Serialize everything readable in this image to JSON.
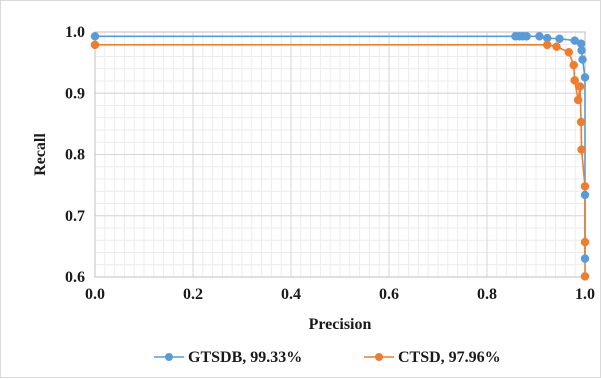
{
  "chart_data": {
    "type": "line",
    "title": "",
    "xlabel": "Precision",
    "ylabel": "Recall",
    "xlim": [
      0,
      1.0
    ],
    "ylim": [
      0.6,
      1.0
    ],
    "x_ticks": [
      "0.0",
      "0.2",
      "0.4",
      "0.6",
      "0.8",
      "1.0"
    ],
    "y_ticks": [
      "0.6",
      "0.7",
      "0.8",
      "0.9",
      "1.0"
    ],
    "grid": true,
    "legend_position": "bottom",
    "series": [
      {
        "name": "GTSDB, 99.33%",
        "color": "#5b9bd5",
        "points": [
          {
            "x": 0.0,
            "y": 0.993
          },
          {
            "x": 0.858,
            "y": 0.993
          },
          {
            "x": 0.866,
            "y": 0.993
          },
          {
            "x": 0.873,
            "y": 0.993
          },
          {
            "x": 0.881,
            "y": 0.993
          },
          {
            "x": 0.907,
            "y": 0.993
          },
          {
            "x": 0.923,
            "y": 0.99
          },
          {
            "x": 0.948,
            "y": 0.989
          },
          {
            "x": 0.979,
            "y": 0.986
          },
          {
            "x": 0.992,
            "y": 0.981
          },
          {
            "x": 0.993,
            "y": 0.97
          },
          {
            "x": 0.995,
            "y": 0.955
          },
          {
            "x": 1.0,
            "y": 0.926
          },
          {
            "x": 1.0,
            "y": 0.734
          },
          {
            "x": 1.0,
            "y": 0.63
          }
        ]
      },
      {
        "name": "CTSD, 97.96%",
        "color": "#ed7d31",
        "points": [
          {
            "x": 0.0,
            "y": 0.979
          },
          {
            "x": 0.923,
            "y": 0.979
          },
          {
            "x": 0.942,
            "y": 0.976
          },
          {
            "x": 0.967,
            "y": 0.967
          },
          {
            "x": 0.977,
            "y": 0.946
          },
          {
            "x": 0.979,
            "y": 0.921
          },
          {
            "x": 0.986,
            "y": 0.889
          },
          {
            "x": 0.99,
            "y": 0.911
          },
          {
            "x": 0.992,
            "y": 0.853
          },
          {
            "x": 0.993,
            "y": 0.808
          },
          {
            "x": 1.0,
            "y": 0.748
          },
          {
            "x": 1.0,
            "y": 0.657
          },
          {
            "x": 1.0,
            "y": 0.601
          }
        ]
      }
    ]
  }
}
